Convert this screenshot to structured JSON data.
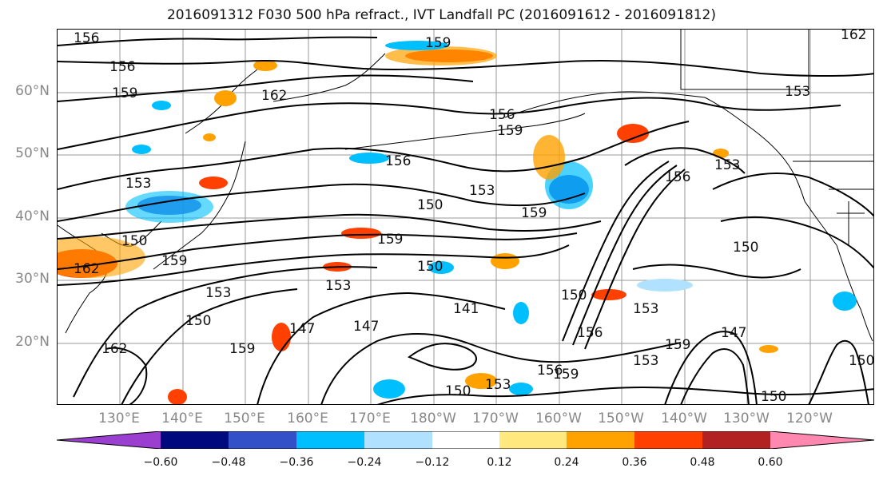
{
  "title": "2016091312 F030 500 hPa refract., IVT Landfall PC (2016091612 - 2016091812)",
  "lat_labels": [
    "60°N",
    "50°N",
    "40°N",
    "30°N",
    "20°N"
  ],
  "lon_labels": [
    "130°E",
    "140°E",
    "150°E",
    "160°E",
    "170°E",
    "180°W",
    "170°W",
    "160°W",
    "150°W",
    "140°W",
    "130°W",
    "120°W"
  ],
  "contour_labels": [
    "156",
    "156",
    "159",
    "162",
    "159",
    "156",
    "159",
    "156",
    "153",
    "150",
    "153",
    "159",
    "159",
    "150",
    "153",
    "150",
    "162",
    "159",
    "147",
    "147",
    "141",
    "150",
    "153",
    "150",
    "159",
    "156",
    "153",
    "159",
    "156",
    "159",
    "153",
    "147",
    "150",
    "153",
    "150",
    "156",
    "153",
    "150",
    "162",
    "150",
    "162",
    "153"
  ],
  "colorbar": {
    "ticks": [
      "−0.60",
      "−0.48",
      "−0.36",
      "−0.24",
      "−0.12",
      "0.12",
      "0.24",
      "0.36",
      "0.48",
      "0.60"
    ],
    "colors": [
      "#9a3fd0",
      "#000a7f",
      "#3350c9",
      "#00bfff",
      "#b0e2ff",
      "#ffffff",
      "#ffe97f",
      "#ffa200",
      "#ff4000",
      "#b22222",
      "#ff88b0"
    ]
  }
}
